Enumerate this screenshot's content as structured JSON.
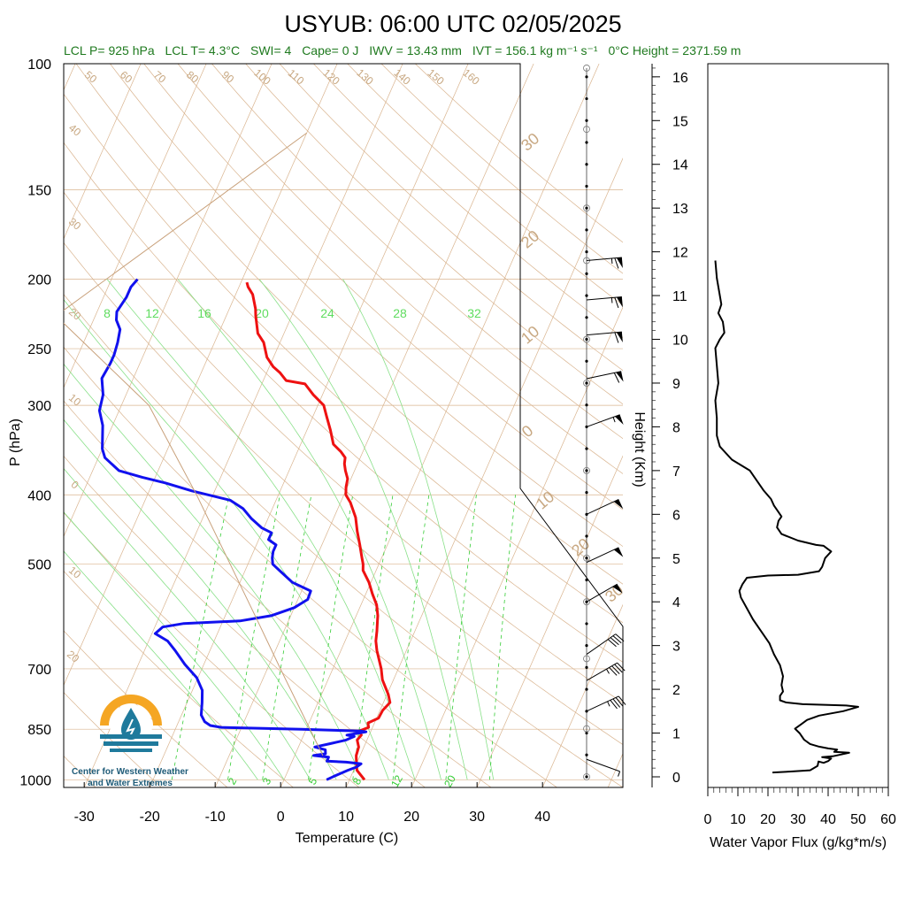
{
  "title": "USYUB: 06:00 UTC 02/05/2025",
  "stats": {
    "lcl_p": "LCL P= 925 hPa",
    "lcl_t": "LCL T= 4.3°C",
    "swi": "SWI= 4",
    "cape": "Cape= 0 J",
    "iwv": "IWV = 13.43 mm",
    "ivt": "IVT = 156.1 kg m⁻¹ s⁻¹",
    "zero_height": "0°C Height = 2371.59 m"
  },
  "logo": {
    "line1": "Center for Western Weather",
    "line2": "and Water Extremes",
    "colors": {
      "sun": "#f5a623",
      "water": "#1f7a9c"
    }
  },
  "colors": {
    "temperature": "#ee1111",
    "dewpoint": "#1111ee",
    "isotherm": "#d9b48f",
    "dry_adiabat": "#d9b48f",
    "moist_adiabat": "#88e088",
    "mixing_ratio": "#33cc33",
    "parcel": "#c8a07a",
    "flux": "#000000"
  },
  "chart_data": [
    {
      "type": "line",
      "subtype": "skew-T log-P",
      "xlabel": "Temperature (C)",
      "ylabel": "P (hPa)",
      "x_ticks": [
        -30,
        -20,
        -10,
        0,
        10,
        20,
        30,
        40
      ],
      "y_ticks": [
        100,
        150,
        200,
        250,
        300,
        400,
        500,
        700,
        850,
        1000
      ],
      "ylim": [
        1000,
        100
      ],
      "y_scale": "log",
      "isotherm_labels": [
        -50,
        -40,
        -30,
        -20,
        -10,
        0,
        10,
        20,
        30
      ],
      "dry_adiabat_labels": [
        "50",
        "60",
        "70",
        "80",
        "90",
        "100",
        "110",
        "120",
        "130",
        "140",
        "150",
        "160",
        "40",
        "30",
        "20",
        "10",
        "0",
        "10",
        "20"
      ],
      "moist_adiabat_labels": [
        "8",
        "12",
        "16",
        "20",
        "24",
        "28",
        "32"
      ],
      "mixing_ratio_labels": [
        "2",
        "3",
        "5",
        "8",
        "12",
        "20"
      ],
      "series": [
        {
          "name": "Temperature",
          "points": [
            [
              12.3,
              1000
            ],
            [
              11.4,
              985
            ],
            [
              10.5,
              970
            ],
            [
              10.0,
              950
            ],
            [
              9.4,
              925
            ],
            [
              9.2,
              900
            ],
            [
              8.5,
              880
            ],
            [
              8.8,
              866
            ],
            [
              8.2,
              855
            ],
            [
              9.4,
              845
            ],
            [
              9.0,
              833
            ],
            [
              10.3,
              820
            ],
            [
              10.4,
              800
            ],
            [
              11.0,
              780
            ],
            [
              10.2,
              760
            ],
            [
              8.3,
              725
            ],
            [
              7.4,
              700
            ],
            [
              5.5,
              660
            ],
            [
              4.7,
              640
            ],
            [
              4.2,
              620
            ],
            [
              3.6,
              600
            ],
            [
              3.3,
              590
            ],
            [
              2.4,
              570
            ],
            [
              1.0,
              550
            ],
            [
              -0.3,
              530
            ],
            [
              -2.0,
              510
            ],
            [
              -2.4,
              500
            ],
            [
              -3.0,
              490
            ],
            [
              -4.2,
              470
            ],
            [
              -5.5,
              450
            ],
            [
              -6.7,
              430
            ],
            [
              -8.5,
              410
            ],
            [
              -9.7,
              400
            ],
            [
              -10.2,
              390
            ],
            [
              -10.5,
              380
            ],
            [
              -11.4,
              370
            ],
            [
              -12.0,
              362
            ],
            [
              -12.3,
              355
            ],
            [
              -13.4,
              348
            ],
            [
              -15.0,
              340
            ],
            [
              -16.4,
              325
            ],
            [
              -18.0,
              310
            ],
            [
              -19.1,
              300
            ],
            [
              -21.4,
              290
            ],
            [
              -23.4,
              280
            ],
            [
              -26.5,
              277
            ],
            [
              -28.0,
              270
            ],
            [
              -29.4,
              265
            ],
            [
              -31.0,
              257
            ],
            [
              -32.5,
              245
            ],
            [
              -34.0,
              238
            ],
            [
              -35.5,
              225
            ],
            [
              -36.0,
              220
            ],
            [
              -37.4,
              210
            ],
            [
              -38.6,
              205
            ],
            [
              -39.1,
              202
            ]
          ]
        },
        {
          "name": "Dewpoint",
          "points": [
            [
              6.5,
              1000
            ],
            [
              7.3,
              990
            ],
            [
              9.1,
              970
            ],
            [
              10.2,
              960
            ],
            [
              10.7,
              950
            ],
            [
              8.3,
              945
            ],
            [
              5.3,
              942
            ],
            [
              5.3,
              930
            ],
            [
              2.9,
              925
            ],
            [
              4.6,
              920
            ],
            [
              4.3,
              908
            ],
            [
              2.5,
              900
            ],
            [
              4.7,
              890
            ],
            [
              6.8,
              880
            ],
            [
              7.8,
              870
            ],
            [
              6.6,
              866
            ],
            [
              9.3,
              857
            ],
            [
              8.4,
              855
            ],
            [
              -0.7,
              850
            ],
            [
              -13.1,
              845
            ],
            [
              -14.9,
              840
            ],
            [
              -16.0,
              830
            ],
            [
              -17.0,
              812
            ],
            [
              -17.7,
              780
            ],
            [
              -18.5,
              750
            ],
            [
              -20.2,
              720
            ],
            [
              -22.9,
              690
            ],
            [
              -25.3,
              660
            ],
            [
              -27.1,
              640
            ],
            [
              -29.5,
              625
            ],
            [
              -28.8,
              612
            ],
            [
              -25.8,
              605
            ],
            [
              -17.4,
              600
            ],
            [
              -13.0,
              590
            ],
            [
              -10.0,
              575
            ],
            [
              -8.5,
              560
            ],
            [
              -8.6,
              545
            ],
            [
              -12.0,
              530
            ],
            [
              -14.5,
              512
            ],
            [
              -16.2,
              500
            ],
            [
              -16.7,
              490
            ],
            [
              -17.0,
              480
            ],
            [
              -17.0,
              470
            ],
            [
              -18.5,
              462
            ],
            [
              -18.5,
              452
            ],
            [
              -20.3,
              445
            ],
            [
              -22.5,
              432
            ],
            [
              -24.5,
              418
            ],
            [
              -27.0,
              407
            ],
            [
              -33.5,
              395
            ],
            [
              -38.1,
              385
            ],
            [
              -42.0,
              378
            ],
            [
              -46.0,
              370
            ],
            [
              -49.0,
              355
            ],
            [
              -50.0,
              345
            ],
            [
              -51.5,
              320
            ],
            [
              -53.0,
              305
            ],
            [
              -53.5,
              290
            ],
            [
              -54.8,
              275
            ],
            [
              -54.5,
              262
            ],
            [
              -54.5,
              255
            ],
            [
              -54.8,
              245
            ],
            [
              -55.3,
              235
            ],
            [
              -56.5,
              228
            ],
            [
              -57.0,
              222
            ],
            [
              -56.5,
              212
            ],
            [
              -56.5,
              205
            ],
            [
              -56.0,
              200
            ]
          ]
        },
        {
          "name": "Parcel",
          "points": [
            [
              4.3,
              925
            ],
            [
              -8.0,
              700
            ],
            [
              -14.7,
              600
            ],
            [
              -22.7,
              500
            ],
            [
              -32.5,
              400
            ],
            [
              -45.8,
              300
            ],
            [
              -66.0,
              225
            ],
            [
              -40.0,
              125
            ]
          ]
        }
      ]
    },
    {
      "type": "barbs",
      "wind_barbs": [
        {
          "height_km": 11.8,
          "dir_deg": 265,
          "speed_kt": 65
        },
        {
          "height_km": 10.9,
          "dir_deg": 265,
          "speed_kt": 65
        },
        {
          "height_km": 10.1,
          "dir_deg": 265,
          "speed_kt": 60
        },
        {
          "height_km": 9.1,
          "dir_deg": 258,
          "speed_kt": 60
        },
        {
          "height_km": 8.0,
          "dir_deg": 250,
          "speed_kt": 55
        },
        {
          "height_km": 6.0,
          "dir_deg": 245,
          "speed_kt": 50
        },
        {
          "height_km": 4.9,
          "dir_deg": 245,
          "speed_kt": 50
        },
        {
          "height_km": 4.0,
          "dir_deg": 240,
          "speed_kt": 50
        },
        {
          "height_km": 2.8,
          "dir_deg": 235,
          "speed_kt": 40
        },
        {
          "height_km": 2.2,
          "dir_deg": 240,
          "speed_kt": 45
        },
        {
          "height_km": 1.5,
          "dir_deg": 245,
          "speed_kt": 45
        },
        {
          "height_km": 0.4,
          "dir_deg": 290,
          "speed_kt": 5
        }
      ]
    },
    {
      "type": "line",
      "xlabel": "Water Vapor Flux (g/kg*m/s)",
      "ylabel": "Height (Km)",
      "xlim": [
        0,
        60
      ],
      "ylim": [
        0,
        16.3
      ],
      "x_ticks": [
        0,
        10,
        20,
        30,
        40,
        50,
        60
      ],
      "y_ticks": [
        0,
        1,
        2,
        3,
        4,
        5,
        6,
        7,
        8,
        9,
        10,
        11,
        12,
        13,
        14,
        15,
        16
      ],
      "series": [
        {
          "name": "Water Vapor Flux",
          "points": [
            [
              21.5,
              0.1
            ],
            [
              27.0,
              0.12
            ],
            [
              34.0,
              0.15
            ],
            [
              36.5,
              0.25
            ],
            [
              36.8,
              0.35
            ],
            [
              38.5,
              0.32
            ],
            [
              40.0,
              0.36
            ],
            [
              41.0,
              0.42
            ],
            [
              38.0,
              0.45
            ],
            [
              41.5,
              0.47
            ],
            [
              47.0,
              0.55
            ],
            [
              42.0,
              0.57
            ],
            [
              43.0,
              0.62
            ],
            [
              40.0,
              0.65
            ],
            [
              37.0,
              0.69
            ],
            [
              34.0,
              0.75
            ],
            [
              32.0,
              0.85
            ],
            [
              30.5,
              1.0
            ],
            [
              29.0,
              1.1
            ],
            [
              31.0,
              1.2
            ],
            [
              33.0,
              1.3
            ],
            [
              37.0,
              1.4
            ],
            [
              45.0,
              1.5
            ],
            [
              50.0,
              1.6
            ],
            [
              46.0,
              1.63
            ],
            [
              31.5,
              1.66
            ],
            [
              26.0,
              1.7
            ],
            [
              24.0,
              1.75
            ],
            [
              24.0,
              1.85
            ],
            [
              25.0,
              1.95
            ],
            [
              24.5,
              2.1
            ],
            [
              25.0,
              2.3
            ],
            [
              24.0,
              2.55
            ],
            [
              22.0,
              2.8
            ],
            [
              20.5,
              3.05
            ],
            [
              18.0,
              3.3
            ],
            [
              15.0,
              3.6
            ],
            [
              13.0,
              3.85
            ],
            [
              11.0,
              4.1
            ],
            [
              10.5,
              4.25
            ],
            [
              11.5,
              4.4
            ],
            [
              13.0,
              4.55
            ],
            [
              20.0,
              4.6
            ],
            [
              30.0,
              4.62
            ],
            [
              37.0,
              4.7
            ],
            [
              38.0,
              4.8
            ],
            [
              39.0,
              5.0
            ],
            [
              41.0,
              5.15
            ],
            [
              38.5,
              5.28
            ],
            [
              36.0,
              5.3
            ],
            [
              30.0,
              5.4
            ],
            [
              24.5,
              5.55
            ],
            [
              23.0,
              5.7
            ],
            [
              23.5,
              5.85
            ],
            [
              24.5,
              5.95
            ],
            [
              23.5,
              6.05
            ],
            [
              22.0,
              6.2
            ],
            [
              21.0,
              6.35
            ],
            [
              18.5,
              6.55
            ],
            [
              16.0,
              6.8
            ],
            [
              14.0,
              7.0
            ],
            [
              8.0,
              7.25
            ],
            [
              4.0,
              7.55
            ],
            [
              3.0,
              7.8
            ],
            [
              3.0,
              8.2
            ],
            [
              2.5,
              8.6
            ],
            [
              3.5,
              9.0
            ],
            [
              3.0,
              9.4
            ],
            [
              2.5,
              9.8
            ],
            [
              4.0,
              10.0
            ],
            [
              5.5,
              10.15
            ],
            [
              5.0,
              10.4
            ],
            [
              3.5,
              10.6
            ],
            [
              4.5,
              10.8
            ],
            [
              4.0,
              11.0
            ],
            [
              3.0,
              11.4
            ],
            [
              2.5,
              11.8
            ]
          ]
        }
      ]
    }
  ]
}
